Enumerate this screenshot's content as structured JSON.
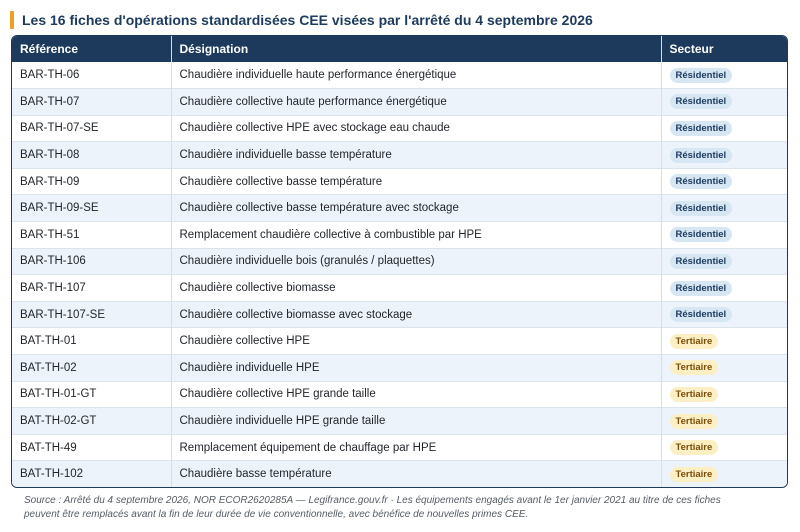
{
  "title": "Les 16 fiches d'opérations standardisées CEE visées par l'arrêté du 4 septembre 2026",
  "table": {
    "headers": [
      "Référence",
      "Désignation",
      "Secteur"
    ],
    "rows": [
      {
        "ref": "BAR-TH-06",
        "designation": "Chaudière individuelle haute performance énergétique",
        "secteur": "Résidentiel",
        "type": "res"
      },
      {
        "ref": "BAR-TH-07",
        "designation": "Chaudière collective haute performance énergétique",
        "secteur": "Résidentiel",
        "type": "res"
      },
      {
        "ref": "BAR-TH-07-SE",
        "designation": "Chaudière collective HPE avec stockage eau chaude",
        "secteur": "Résidentiel",
        "type": "res"
      },
      {
        "ref": "BAR-TH-08",
        "designation": "Chaudière individuelle basse température",
        "secteur": "Résidentiel",
        "type": "res"
      },
      {
        "ref": "BAR-TH-09",
        "designation": "Chaudière collective basse température",
        "secteur": "Résidentiel",
        "type": "res"
      },
      {
        "ref": "BAR-TH-09-SE",
        "designation": "Chaudière collective basse température avec stockage",
        "secteur": "Résidentiel",
        "type": "res"
      },
      {
        "ref": "BAR-TH-51",
        "designation": "Remplacement chaudière collective à combustible par HPE",
        "secteur": "Résidentiel",
        "type": "res"
      },
      {
        "ref": "BAR-TH-106",
        "designation": "Chaudière individuelle bois (granulés / plaquettes)",
        "secteur": "Résidentiel",
        "type": "res"
      },
      {
        "ref": "BAR-TH-107",
        "designation": "Chaudière collective biomasse",
        "secteur": "Résidentiel",
        "type": "res"
      },
      {
        "ref": "BAR-TH-107-SE",
        "designation": "Chaudière collective biomasse avec stockage",
        "secteur": "Résidentiel",
        "type": "res"
      },
      {
        "ref": "BAT-TH-01",
        "designation": "Chaudière collective HPE",
        "secteur": "Tertiaire",
        "type": "ter"
      },
      {
        "ref": "BAT-TH-02",
        "designation": "Chaudière individuelle HPE",
        "secteur": "Tertiaire",
        "type": "ter"
      },
      {
        "ref": "BAT-TH-01-GT",
        "designation": "Chaudière collective HPE grande taille",
        "secteur": "Tertiaire",
        "type": "ter"
      },
      {
        "ref": "BAT-TH-02-GT",
        "designation": "Chaudière individuelle HPE grande taille",
        "secteur": "Tertiaire",
        "type": "ter"
      },
      {
        "ref": "BAT-TH-49",
        "designation": "Remplacement équipement de chauffage par HPE",
        "secteur": "Tertiaire",
        "type": "ter"
      },
      {
        "ref": "BAT-TH-102",
        "designation": "Chaudière basse température",
        "secteur": "Tertiaire",
        "type": "ter"
      }
    ]
  },
  "footer": {
    "line1": "Source : Arrêté du 4 septembre 2026, NOR ECOR2620285A — Legifrance.gouv.fr · Les équipements engagés avant le 1er janvier 2021 au titre de ces fiches",
    "line2": "peuvent être remplacés avant la fin de leur durée de vie conventionnelle, avec bénéfice de nouvelles primes CEE."
  },
  "colors": {
    "header_bg": "#1d3a5c",
    "accent": "#f0a020",
    "res_badge": "#d6e6f3",
    "ter_badge": "#fdefc4"
  }
}
